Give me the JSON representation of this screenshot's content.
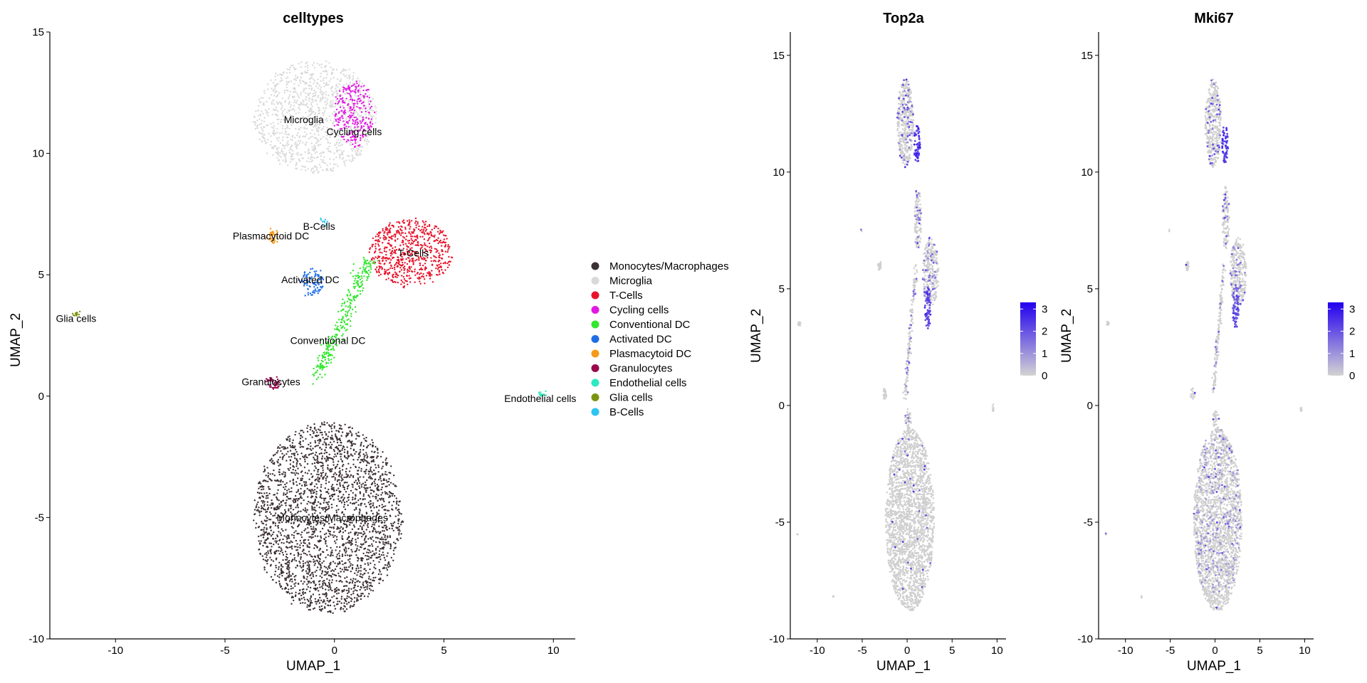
{
  "figure": {
    "panels": [
      {
        "title": "celltypes",
        "xlabel": "UMAP_1",
        "ylabel": "UMAP_2"
      },
      {
        "title": "Top2a",
        "xlabel": "UMAP_1",
        "ylabel": "UMAP_2"
      },
      {
        "title": "Mki67",
        "xlabel": "UMAP_1",
        "ylabel": "UMAP_2"
      }
    ],
    "legend": [
      {
        "label": "Monocytes/Macrophages",
        "color": "#3d3033"
      },
      {
        "label": "Microglia",
        "color": "#d9d9d9"
      },
      {
        "label": "T-Cells",
        "color": "#e8142b"
      },
      {
        "label": "Cycling cells",
        "color": "#e317e3"
      },
      {
        "label": "Conventional DC",
        "color": "#33e62e"
      },
      {
        "label": "Activated DC",
        "color": "#1f6ee8"
      },
      {
        "label": "Plasmacytoid DC",
        "color": "#f59a1a"
      },
      {
        "label": "Granulocytes",
        "color": "#990a4d"
      },
      {
        "label": "Endothelial cells",
        "color": "#2ee8bf"
      },
      {
        "label": "Glia cells",
        "color": "#7a9410"
      },
      {
        "label": "B-Cells",
        "color": "#2ec4f0"
      }
    ],
    "colorbar": {
      "ticks": [
        "3",
        "2",
        "1",
        "0"
      ],
      "low_color": "#d3d3d3",
      "high_color": "#2200ee"
    }
  },
  "chart_data": [
    {
      "type": "scatter",
      "title": "celltypes",
      "xlabel": "UMAP_1",
      "ylabel": "UMAP_2",
      "xlim": [
        -13,
        11
      ],
      "ylim": [
        -10,
        15
      ],
      "xticks": [
        -10,
        -5,
        0,
        5,
        10
      ],
      "yticks": [
        -10,
        -5,
        0,
        5,
        10,
        15
      ],
      "legend": "right",
      "cluster_labels": [
        {
          "label": "Microglia",
          "x": -1.4,
          "y": 11.4
        },
        {
          "label": "Cycling cells",
          "x": 0.9,
          "y": 10.9
        },
        {
          "label": "B-Cells",
          "x": -0.7,
          "y": 7.0
        },
        {
          "label": "Plasmacytoid DC",
          "x": -2.9,
          "y": 6.6
        },
        {
          "label": "T-Cells",
          "x": 3.6,
          "y": 5.9
        },
        {
          "label": "Activated DC",
          "x": -1.1,
          "y": 4.8
        },
        {
          "label": "Glia cells",
          "x": -11.8,
          "y": 3.2
        },
        {
          "label": "Conventional DC",
          "x": -0.3,
          "y": 2.3
        },
        {
          "label": "Granulocytes",
          "x": -2.9,
          "y": 0.6
        },
        {
          "label": "Endothelial cells",
          "x": 9.4,
          "y": -0.1
        },
        {
          "label": "Monocytes/Macrophages",
          "x": -0.1,
          "y": -5.0
        }
      ],
      "clusters": [
        {
          "name": "Monocytes/Macrophages",
          "center": [
            -0.3,
            -5.0
          ],
          "spread": [
            3.4,
            3.9
          ],
          "shape": "ellipse",
          "n": 2600,
          "color": "#3d3033"
        },
        {
          "name": "Microglia",
          "center": [
            -0.9,
            11.5
          ],
          "spread": [
            2.8,
            2.3
          ],
          "shape": "ellipse",
          "n": 1100,
          "color": "#d9d9d9"
        },
        {
          "name": "T-Cells",
          "center": [
            3.5,
            5.9
          ],
          "spread": [
            1.9,
            1.4
          ],
          "shape": "ellipse",
          "n": 650,
          "color": "#e8142b"
        },
        {
          "name": "Cycling cells",
          "center": [
            0.9,
            11.6
          ],
          "spread": [
            0.9,
            1.3
          ],
          "shape": "ellipse",
          "n": 260,
          "color": "#e317e3"
        },
        {
          "name": "Conventional DC",
          "from": [
            -0.8,
            0.8
          ],
          "to": [
            1.6,
            5.6
          ],
          "width": 0.35,
          "shape": "line",
          "n": 300,
          "color": "#33e62e"
        },
        {
          "name": "Activated DC",
          "center": [
            -1.0,
            4.7
          ],
          "spread": [
            0.5,
            0.6
          ],
          "shape": "ellipse",
          "n": 90,
          "color": "#1f6ee8"
        },
        {
          "name": "Plasmacytoid DC",
          "center": [
            -2.8,
            6.6
          ],
          "spread": [
            0.25,
            0.3
          ],
          "shape": "ellipse",
          "n": 40,
          "color": "#f59a1a"
        },
        {
          "name": "Granulocytes",
          "center": [
            -2.8,
            0.55
          ],
          "spread": [
            0.3,
            0.25
          ],
          "shape": "ellipse",
          "n": 45,
          "color": "#990a4d"
        },
        {
          "name": "Endothelial cells",
          "center": [
            9.5,
            0.1
          ],
          "spread": [
            0.15,
            0.1
          ],
          "shape": "ellipse",
          "n": 15,
          "color": "#2ee8bf"
        },
        {
          "name": "Glia cells",
          "center": [
            -11.8,
            3.4
          ],
          "spread": [
            0.12,
            0.1
          ],
          "shape": "ellipse",
          "n": 15,
          "color": "#7a9410"
        },
        {
          "name": "B-Cells",
          "center": [
            -0.5,
            7.2
          ],
          "spread": [
            0.15,
            0.1
          ],
          "shape": "ellipse",
          "n": 10,
          "color": "#2ec4f0"
        }
      ]
    },
    {
      "type": "scatter",
      "title": "Top2a",
      "xlabel": "UMAP_1",
      "ylabel": "UMAP_2",
      "xlim": [
        -13,
        11
      ],
      "ylim": [
        -10,
        16
      ],
      "xticks": [
        -10,
        -5,
        0,
        5,
        10
      ],
      "yticks": [
        -10,
        -5,
        0,
        5,
        10,
        15
      ],
      "color_scale": {
        "min": 0,
        "max": 3.3,
        "ticks": [
          0,
          1,
          2,
          3
        ]
      },
      "expression_high_regions": [
        {
          "center": [
            1.1,
            11.1
          ],
          "expression": 3.0
        },
        {
          "center": [
            2.4,
            4.2
          ],
          "expression": 2.8
        },
        {
          "center": [
            0.4,
            2.6
          ],
          "expression": 2.0
        }
      ]
    },
    {
      "type": "scatter",
      "title": "Mki67",
      "xlabel": "UMAP_1",
      "ylabel": "UMAP_2",
      "xlim": [
        -13,
        11
      ],
      "ylim": [
        -10,
        16
      ],
      "xticks": [
        -10,
        -5,
        0,
        5,
        10
      ],
      "yticks": [
        -10,
        -5,
        0,
        5,
        10,
        15
      ],
      "color_scale": {
        "min": 0,
        "max": 3.3,
        "ticks": [
          0,
          1,
          2,
          3
        ]
      },
      "expression_high_regions": [
        {
          "center": [
            1.1,
            11.1
          ],
          "expression": 3.0
        },
        {
          "center": [
            2.0,
            4.3
          ],
          "expression": 2.6
        },
        {
          "center": [
            0.4,
            -4.5
          ],
          "expression": 1.5
        }
      ]
    }
  ]
}
